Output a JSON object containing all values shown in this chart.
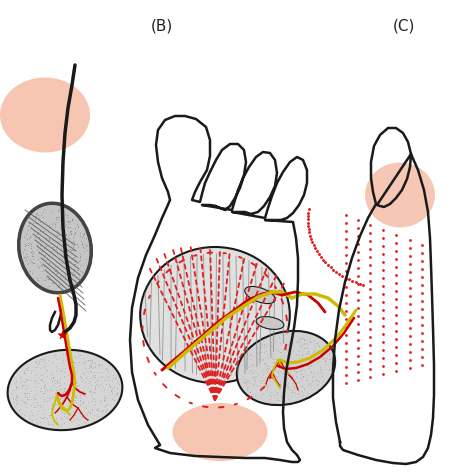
{
  "label_B": "(B)",
  "label_C": "(C)",
  "bg_color": "#ffffff",
  "foot_color": "#1a1a1a",
  "dash_color": "#e02020",
  "red_vessel": "#cc0000",
  "yellow_vessel": "#ccbb00",
  "flap_pink": "#f5c0aa",
  "gray_light": "#d8d8d8",
  "gray_dark": "#aaaaaa",
  "gray_texture": "#b8b8b8"
}
